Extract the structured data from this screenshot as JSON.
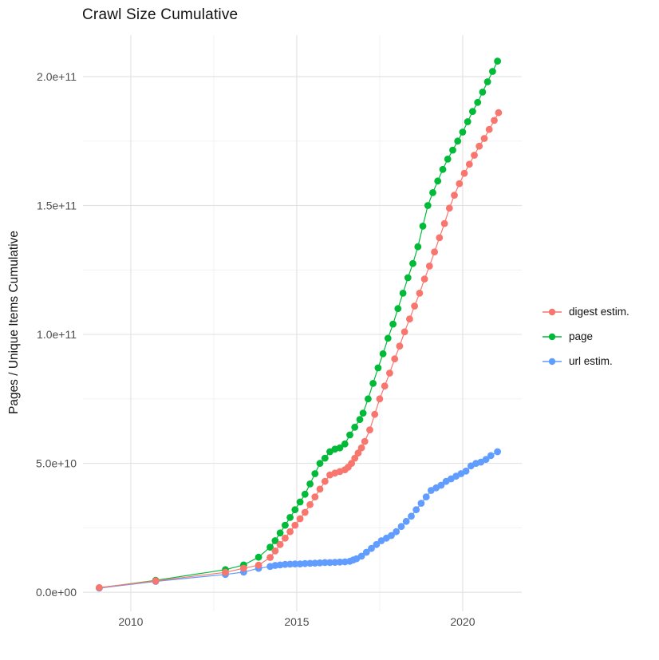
{
  "chart_data": {
    "type": "line",
    "title": "Crawl Size Cumulative",
    "xlabel": "",
    "ylabel": "Pages / Unique Items Cumulative",
    "grid": true,
    "legend_position": "right",
    "x_axis": {
      "lim": [
        2008.56,
        2021.78
      ],
      "ticks": [
        2010,
        2015,
        2020
      ],
      "tick_labels": [
        "2010",
        "2015",
        "2020"
      ],
      "minor_ticks": [
        2012.5,
        2017.5
      ]
    },
    "y_axis": {
      "lim": [
        -7400000000.0,
        216100000000.0
      ],
      "ticks": [
        0,
        50000000000.0,
        100000000000.0,
        150000000000.0,
        200000000000.0
      ],
      "tick_labels": [
        "0.0e+00",
        "5.0e+10",
        "1.0e+11",
        "1.5e+11",
        "2.0e+11"
      ],
      "minor_ticks": [
        25000000000.0,
        75000000000.0,
        125000000000.0,
        175000000000.0
      ]
    },
    "series": [
      {
        "name": "digest estim.",
        "color": "#F8766D",
        "points": [
          [
            2009.05,
            1800000000.0
          ],
          [
            2010.75,
            4400000000.0
          ],
          [
            2012.85,
            7700000000.0
          ],
          [
            2013.4,
            9300000000.0
          ],
          [
            2013.85,
            10500000000.0
          ],
          [
            2014.2,
            13500000000.0
          ],
          [
            2014.35,
            16000000000.0
          ],
          [
            2014.5,
            18500000000.0
          ],
          [
            2014.65,
            21000000000.0
          ],
          [
            2014.8,
            23500000000.0
          ],
          [
            2014.95,
            26000000000.0
          ],
          [
            2015.1,
            28500000000.0
          ],
          [
            2015.25,
            31000000000.0
          ],
          [
            2015.4,
            34000000000.0
          ],
          [
            2015.55,
            37000000000.0
          ],
          [
            2015.7,
            40000000000.0
          ],
          [
            2015.85,
            43000000000.0
          ],
          [
            2016.0,
            45500000000.0
          ],
          [
            2016.15,
            46200000000.0
          ],
          [
            2016.3,
            46800000000.0
          ],
          [
            2016.45,
            47500000000.0
          ],
          [
            2016.55,
            48500000000.0
          ],
          [
            2016.65,
            50000000000.0
          ],
          [
            2016.75,
            52000000000.0
          ],
          [
            2016.85,
            54000000000.0
          ],
          [
            2016.95,
            56000000000.0
          ],
          [
            2017.05,
            58500000000.0
          ],
          [
            2017.2,
            63000000000.0
          ],
          [
            2017.35,
            69000000000.0
          ],
          [
            2017.5,
            75000000000.0
          ],
          [
            2017.65,
            80000000000.0
          ],
          [
            2017.8,
            85000000000.0
          ],
          [
            2017.95,
            90500000000.0
          ],
          [
            2018.1,
            95500000000.0
          ],
          [
            2018.25,
            101000000000.0
          ],
          [
            2018.4,
            106000000000.0
          ],
          [
            2018.55,
            111000000000.0
          ],
          [
            2018.7,
            116000000000.0
          ],
          [
            2018.85,
            121500000000.0
          ],
          [
            2019.0,
            126500000000.0
          ],
          [
            2019.15,
            132000000000.0
          ],
          [
            2019.3,
            137500000000.0
          ],
          [
            2019.45,
            143000000000.0
          ],
          [
            2019.6,
            149000000000.0
          ],
          [
            2019.75,
            154000000000.0
          ],
          [
            2019.9,
            158500000000.0
          ],
          [
            2020.05,
            162500000000.0
          ],
          [
            2020.2,
            166000000000.0
          ],
          [
            2020.35,
            169500000000.0
          ],
          [
            2020.5,
            173000000000.0
          ],
          [
            2020.65,
            176000000000.0
          ],
          [
            2020.8,
            179500000000.0
          ],
          [
            2020.95,
            183000000000.0
          ],
          [
            2021.08,
            186000000000.0
          ]
        ]
      },
      {
        "name": "page",
        "color": "#00BA38",
        "points": [
          [
            2009.05,
            1700000000.0
          ],
          [
            2010.75,
            4600000000.0
          ],
          [
            2012.85,
            8750000000.0
          ],
          [
            2013.4,
            10600000000.0
          ],
          [
            2013.85,
            13600000000.0
          ],
          [
            2014.2,
            17500000000.0
          ],
          [
            2014.35,
            20000000000.0
          ],
          [
            2014.5,
            23000000000.0
          ],
          [
            2014.65,
            26000000000.0
          ],
          [
            2014.8,
            29000000000.0
          ],
          [
            2014.95,
            32000000000.0
          ],
          [
            2015.1,
            35000000000.0
          ],
          [
            2015.25,
            38000000000.0
          ],
          [
            2015.4,
            42000000000.0
          ],
          [
            2015.55,
            46000000000.0
          ],
          [
            2015.7,
            50000000000.0
          ],
          [
            2015.85,
            52000000000.0
          ],
          [
            2016.0,
            54500000000.0
          ],
          [
            2016.15,
            55500000000.0
          ],
          [
            2016.3,
            56000000000.0
          ],
          [
            2016.45,
            57500000000.0
          ],
          [
            2016.6,
            61000000000.0
          ],
          [
            2016.75,
            64000000000.0
          ],
          [
            2016.9,
            67000000000.0
          ],
          [
            2017.0,
            69500000000.0
          ],
          [
            2017.15,
            75000000000.0
          ],
          [
            2017.3,
            81000000000.0
          ],
          [
            2017.45,
            87000000000.0
          ],
          [
            2017.6,
            92500000000.0
          ],
          [
            2017.75,
            98500000000.0
          ],
          [
            2017.9,
            104000000000.0
          ],
          [
            2018.05,
            110000000000.0
          ],
          [
            2018.2,
            116000000000.0
          ],
          [
            2018.35,
            122000000000.0
          ],
          [
            2018.5,
            127500000000.0
          ],
          [
            2018.65,
            134000000000.0
          ],
          [
            2018.8,
            142000000000.0
          ],
          [
            2018.95,
            150000000000.0
          ],
          [
            2019.1,
            155000000000.0
          ],
          [
            2019.25,
            159500000000.0
          ],
          [
            2019.4,
            164000000000.0
          ],
          [
            2019.55,
            168000000000.0
          ],
          [
            2019.7,
            171500000000.0
          ],
          [
            2019.85,
            175000000000.0
          ],
          [
            2020.0,
            178500000000.0
          ],
          [
            2020.15,
            182500000000.0
          ],
          [
            2020.3,
            186500000000.0
          ],
          [
            2020.45,
            190000000000.0
          ],
          [
            2020.6,
            194000000000.0
          ],
          [
            2020.75,
            198000000000.0
          ],
          [
            2020.9,
            202000000000.0
          ],
          [
            2021.05,
            206000000000.0
          ]
        ]
      },
      {
        "name": "url estim.",
        "color": "#619CFF",
        "points": [
          [
            2009.05,
            1600000000.0
          ],
          [
            2010.75,
            4200000000.0
          ],
          [
            2012.85,
            6900000000.0
          ],
          [
            2013.4,
            7800000000.0
          ],
          [
            2013.85,
            9300000000.0
          ],
          [
            2014.2,
            10000000000.0
          ],
          [
            2014.35,
            10400000000.0
          ],
          [
            2014.5,
            10600000000.0
          ],
          [
            2014.65,
            10800000000.0
          ],
          [
            2014.8,
            10900000000.0
          ],
          [
            2014.95,
            11000000000.0
          ],
          [
            2015.1,
            11000000000.0
          ],
          [
            2015.25,
            11100000000.0
          ],
          [
            2015.4,
            11200000000.0
          ],
          [
            2015.55,
            11300000000.0
          ],
          [
            2015.7,
            11400000000.0
          ],
          [
            2015.85,
            11500000000.0
          ],
          [
            2016.0,
            11500000000.0
          ],
          [
            2016.15,
            11600000000.0
          ],
          [
            2016.3,
            11700000000.0
          ],
          [
            2016.45,
            11800000000.0
          ],
          [
            2016.6,
            12000000000.0
          ],
          [
            2016.7,
            12500000000.0
          ],
          [
            2016.8,
            13000000000.0
          ],
          [
            2016.95,
            14000000000.0
          ],
          [
            2017.1,
            15500000000.0
          ],
          [
            2017.25,
            17000000000.0
          ],
          [
            2017.4,
            18500000000.0
          ],
          [
            2017.55,
            20000000000.0
          ],
          [
            2017.7,
            21000000000.0
          ],
          [
            2017.85,
            22000000000.0
          ],
          [
            2018.0,
            23500000000.0
          ],
          [
            2018.15,
            25500000000.0
          ],
          [
            2018.3,
            27500000000.0
          ],
          [
            2018.45,
            29500000000.0
          ],
          [
            2018.6,
            32000000000.0
          ],
          [
            2018.75,
            34500000000.0
          ],
          [
            2018.9,
            37000000000.0
          ],
          [
            2019.05,
            39500000000.0
          ],
          [
            2019.2,
            40500000000.0
          ],
          [
            2019.35,
            41500000000.0
          ],
          [
            2019.5,
            43000000000.0
          ],
          [
            2019.65,
            44000000000.0
          ],
          [
            2019.8,
            45000000000.0
          ],
          [
            2019.95,
            46000000000.0
          ],
          [
            2020.1,
            47000000000.0
          ],
          [
            2020.25,
            49000000000.0
          ],
          [
            2020.4,
            50000000000.0
          ],
          [
            2020.55,
            50500000000.0
          ],
          [
            2020.7,
            51500000000.0
          ],
          [
            2020.85,
            53000000000.0
          ],
          [
            2021.05,
            54500000000.0
          ]
        ]
      }
    ],
    "style": {
      "major_grid_color": "#e3e3e3",
      "minor_grid_color": "#f0f0f0",
      "tick_label_color": "#4d4d4d",
      "text_color": "#111111",
      "background": "#ffffff"
    }
  }
}
